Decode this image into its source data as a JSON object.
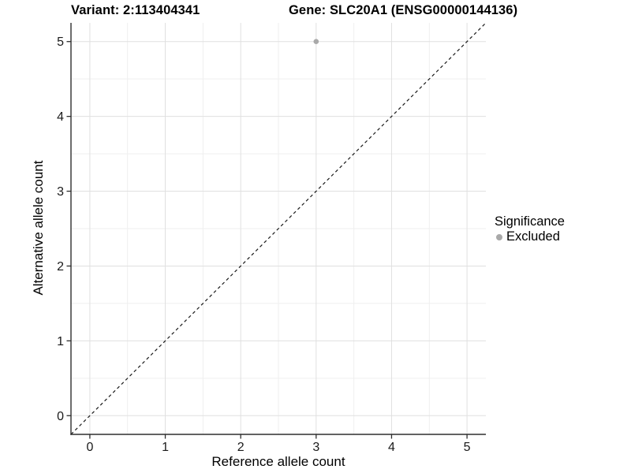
{
  "chart_data": {
    "type": "scatter",
    "title_left": "Variant: 2:113404341",
    "title_right": "Gene: SLC20A1 (ENSG00000144136)",
    "xlabel": "Reference allele count",
    "ylabel": "Alternative allele count",
    "xlim": [
      -0.25,
      5.25
    ],
    "ylim": [
      -0.25,
      5.25
    ],
    "x_ticks": [
      0,
      1,
      2,
      3,
      4,
      5
    ],
    "y_ticks": [
      0,
      1,
      2,
      3,
      4,
      5
    ],
    "x_minor": [
      0.5,
      1.5,
      2.5,
      3.5,
      4.5
    ],
    "y_minor": [
      0.5,
      1.5,
      2.5,
      3.5,
      4.5
    ],
    "grid": true,
    "points": [
      {
        "x": 3,
        "y": 5,
        "series": "Excluded"
      }
    ],
    "reference_line": {
      "kind": "identity",
      "from": [
        -0.25,
        -0.25
      ],
      "to": [
        5.25,
        5.25
      ],
      "style": "dashed",
      "color": "#1a1a1a"
    },
    "legend": {
      "title": "Significance",
      "position": "right",
      "items": [
        {
          "label": "Excluded",
          "color": "#a9a9a9"
        }
      ]
    },
    "style": {
      "point_color": "#a9a9a9",
      "point_radius": 3.3,
      "grid_major_color": "#e0e0e0",
      "grid_minor_color": "#efefef",
      "axis_line_color": "#2e2e2e",
      "tick_label_color": "#1a1a1a"
    }
  }
}
